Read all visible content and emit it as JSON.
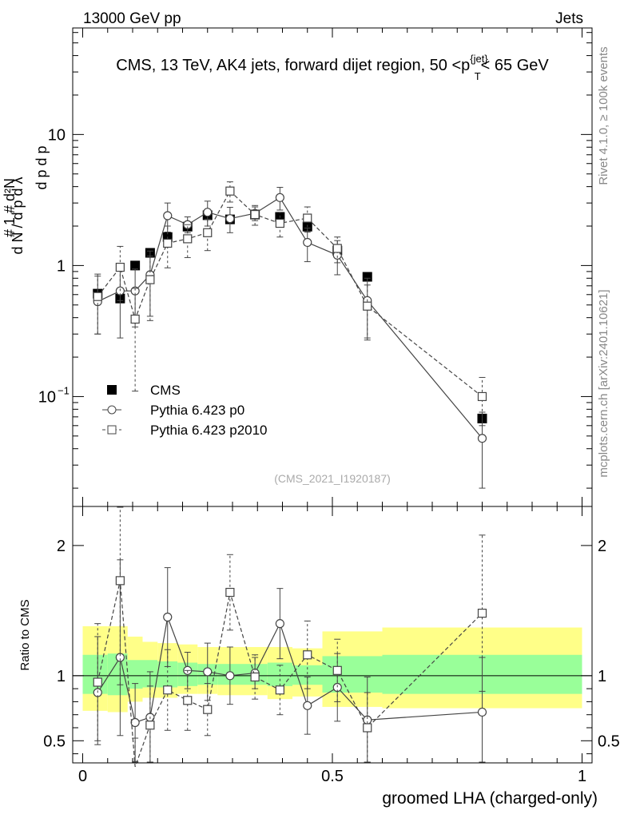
{
  "header": {
    "left": "13000 GeV pp",
    "right": "Jets"
  },
  "side_labels": {
    "rivet": "Rivet 4.1.0, ≥ 100k events",
    "mcplots": "mcplots.cern.ch [arXiv:2401.10621]"
  },
  "colors": {
    "band_outer": "#ffff88",
    "band_inner": "#99ff99",
    "data": "#000000",
    "mc": "#444444"
  },
  "chart_data": [
    {
      "type": "scatter",
      "panel": "main",
      "title": "CMS, 13 TeV, AK4 jets, forward dijet region, 50 < p_T^{jet} < 65 GeV",
      "ylabel": "1/dN/dpT · d²N/dpT dλ",
      "watermark": "(CMS_2021_I1920187)",
      "yscale": "log",
      "xlim": [
        -0.02,
        1.02
      ],
      "ylim": [
        0.0145,
        65
      ],
      "y_ticks": [
        {
          "value": 10,
          "label": "10"
        },
        {
          "value": 1,
          "label": "1"
        },
        {
          "value": 0.1,
          "label": "10",
          "sup": "−1"
        }
      ],
      "legend": {
        "position": "lower-left",
        "entries": [
          "CMS",
          "Pythia 6.423 p0",
          "Pythia 6.423 p2010"
        ]
      },
      "series": [
        {
          "name": "CMS",
          "style": "filled-square",
          "x": [
            0.03,
            0.075,
            0.105,
            0.135,
            0.17,
            0.21,
            0.25,
            0.295,
            0.345,
            0.395,
            0.45,
            0.51,
            0.57,
            0.8
          ],
          "xerr": [
            0.015,
            0.02,
            0.01,
            0.015,
            0.02,
            0.02,
            0.02,
            0.025,
            0.025,
            0.025,
            0.03,
            0.03,
            0.03,
            0.2
          ],
          "y": [
            0.61,
            0.56,
            1.0,
            1.25,
            1.65,
            1.98,
            2.42,
            2.25,
            2.45,
            2.35,
            1.98,
            1.3,
            0.82,
            0.068
          ]
        },
        {
          "name": "Pythia 6.423 p0",
          "style": "open-circle-solid",
          "x": [
            0.03,
            0.075,
            0.105,
            0.135,
            0.17,
            0.21,
            0.25,
            0.295,
            0.345,
            0.395,
            0.45,
            0.51,
            0.57,
            0.8
          ],
          "y": [
            0.53,
            0.64,
            0.64,
            0.85,
            2.4,
            2.05,
            2.55,
            2.28,
            2.5,
            3.3,
            1.5,
            1.2,
            0.54,
            0.048
          ],
          "err_lo": [
            0.23,
            0.36,
            0.3,
            0.44,
            0.6,
            0.27,
            0.55,
            0.5,
            0.3,
            0.65,
            0.43,
            0.35,
            0.26,
            0.028
          ],
          "err_hi": [
            0.3,
            0.4,
            0.3,
            0.44,
            0.6,
            0.3,
            0.55,
            0.5,
            0.3,
            0.65,
            0.43,
            0.35,
            0.26,
            0.028
          ]
        },
        {
          "name": "Pythia 6.423 p2010",
          "style": "open-square-dashed",
          "x": [
            0.03,
            0.075,
            0.105,
            0.135,
            0.17,
            0.21,
            0.25,
            0.295,
            0.345,
            0.395,
            0.45,
            0.51,
            0.57,
            0.8
          ],
          "y": [
            0.58,
            0.97,
            0.39,
            0.78,
            1.48,
            1.6,
            1.78,
            3.7,
            2.45,
            2.1,
            2.3,
            1.35,
            0.49,
            0.1
          ],
          "err_lo": [
            0.28,
            0.43,
            0.28,
            0.4,
            0.52,
            0.45,
            0.48,
            0.65,
            0.42,
            0.45,
            0.5,
            0.3,
            0.22,
            0.04
          ],
          "err_hi": [
            0.28,
            0.43,
            0.28,
            0.4,
            0.52,
            0.45,
            0.48,
            0.65,
            0.42,
            0.45,
            0.5,
            0.3,
            0.22,
            0.04
          ]
        }
      ]
    },
    {
      "type": "scatter",
      "panel": "ratio",
      "xlabel": "groomed LHA (charged-only)",
      "ylabel": "Ratio to CMS",
      "xlim": [
        -0.02,
        1.02
      ],
      "ylim": [
        0.33,
        2.3
      ],
      "x_ticks": [
        {
          "value": 0,
          "label": "0"
        },
        {
          "value": 0.5,
          "label": "0.5"
        },
        {
          "value": 1,
          "label": "1"
        }
      ],
      "y_ticks": [
        {
          "value": 2,
          "label": "2"
        },
        {
          "value": 1,
          "label": "1"
        },
        {
          "value": 0.5,
          "label": "0.5"
        }
      ],
      "reference": 1,
      "bands": {
        "bin_edges": [
          0,
          0.05,
          0.09,
          0.12,
          0.15,
          0.19,
          0.23,
          0.27,
          0.32,
          0.37,
          0.42,
          0.48,
          0.54,
          0.6,
          1.0
        ],
        "outer": [
          [
            0.73,
            1.38
          ],
          [
            0.72,
            1.38
          ],
          [
            0.8,
            1.3
          ],
          [
            0.83,
            1.26
          ],
          [
            0.83,
            1.25
          ],
          [
            0.86,
            1.24
          ],
          [
            0.86,
            1.22
          ],
          [
            0.85,
            1.22
          ],
          [
            0.85,
            1.22
          ],
          [
            0.82,
            1.22
          ],
          [
            0.84,
            1.21
          ],
          [
            0.76,
            1.34
          ],
          [
            0.76,
            1.34
          ],
          [
            0.75,
            1.37
          ]
        ],
        "inner": [
          [
            0.86,
            1.16
          ],
          [
            0.85,
            1.17
          ],
          [
            0.9,
            1.12
          ],
          [
            0.91,
            1.12
          ],
          [
            0.91,
            1.11
          ],
          [
            0.92,
            1.1
          ],
          [
            0.93,
            1.09
          ],
          [
            0.93,
            1.09
          ],
          [
            0.93,
            1.09
          ],
          [
            0.92,
            1.1
          ],
          [
            0.93,
            1.08
          ],
          [
            0.87,
            1.15
          ],
          [
            0.87,
            1.15
          ],
          [
            0.86,
            1.16
          ]
        ]
      },
      "series": [
        {
          "name": "Pythia 6.423 p0",
          "style": "open-circle-solid",
          "x": [
            0.03,
            0.075,
            0.105,
            0.135,
            0.17,
            0.21,
            0.25,
            0.295,
            0.345,
            0.395,
            0.45,
            0.51,
            0.57,
            0.8
          ],
          "y": [
            0.87,
            1.14,
            0.64,
            0.68,
            1.45,
            1.04,
            1.03,
            1.0,
            1.02,
            1.4,
            0.77,
            0.91,
            0.66,
            0.72
          ],
          "err_lo": [
            0.4,
            0.6,
            0.3,
            0.35,
            0.38,
            0.14,
            0.22,
            0.22,
            0.12,
            0.27,
            0.22,
            0.26,
            0.33,
            0.42
          ],
          "err_hi": [
            0.43,
            0.75,
            0.3,
            0.35,
            0.38,
            0.14,
            0.22,
            0.22,
            0.12,
            0.27,
            0.22,
            0.26,
            0.33,
            0.42
          ]
        },
        {
          "name": "Pythia 6.423 p2010",
          "style": "open-square-dashed",
          "x": [
            0.03,
            0.075,
            0.105,
            0.135,
            0.17,
            0.21,
            0.25,
            0.295,
            0.345,
            0.395,
            0.45,
            0.51,
            0.57,
            0.8
          ],
          "y": [
            0.95,
            1.73,
            0.3,
            0.62,
            0.89,
            0.81,
            0.74,
            1.64,
            0.99,
            0.89,
            1.16,
            1.04,
            0.6,
            1.48
          ],
          "err_lo": [
            0.45,
            0.8,
            0.22,
            0.3,
            0.31,
            0.23,
            0.2,
            0.29,
            0.17,
            0.19,
            0.26,
            0.24,
            0.27,
            0.6
          ],
          "err_hi": [
            0.45,
            0.8,
            0.22,
            0.3,
            0.31,
            0.23,
            0.2,
            0.29,
            0.17,
            0.19,
            0.26,
            0.24,
            0.27,
            0.6
          ]
        }
      ]
    }
  ]
}
